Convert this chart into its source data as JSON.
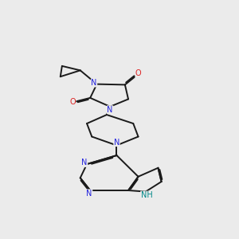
{
  "bg_color": "#ebebeb",
  "bond_color": "#1a1a1a",
  "N_color": "#2222dd",
  "O_color": "#dd2222",
  "NH_color": "#008888",
  "fs": 7.0,
  "lw": 1.4,
  "dbo": 0.06,
  "xlim": [
    0,
    10
  ],
  "ylim": [
    0,
    10
  ]
}
